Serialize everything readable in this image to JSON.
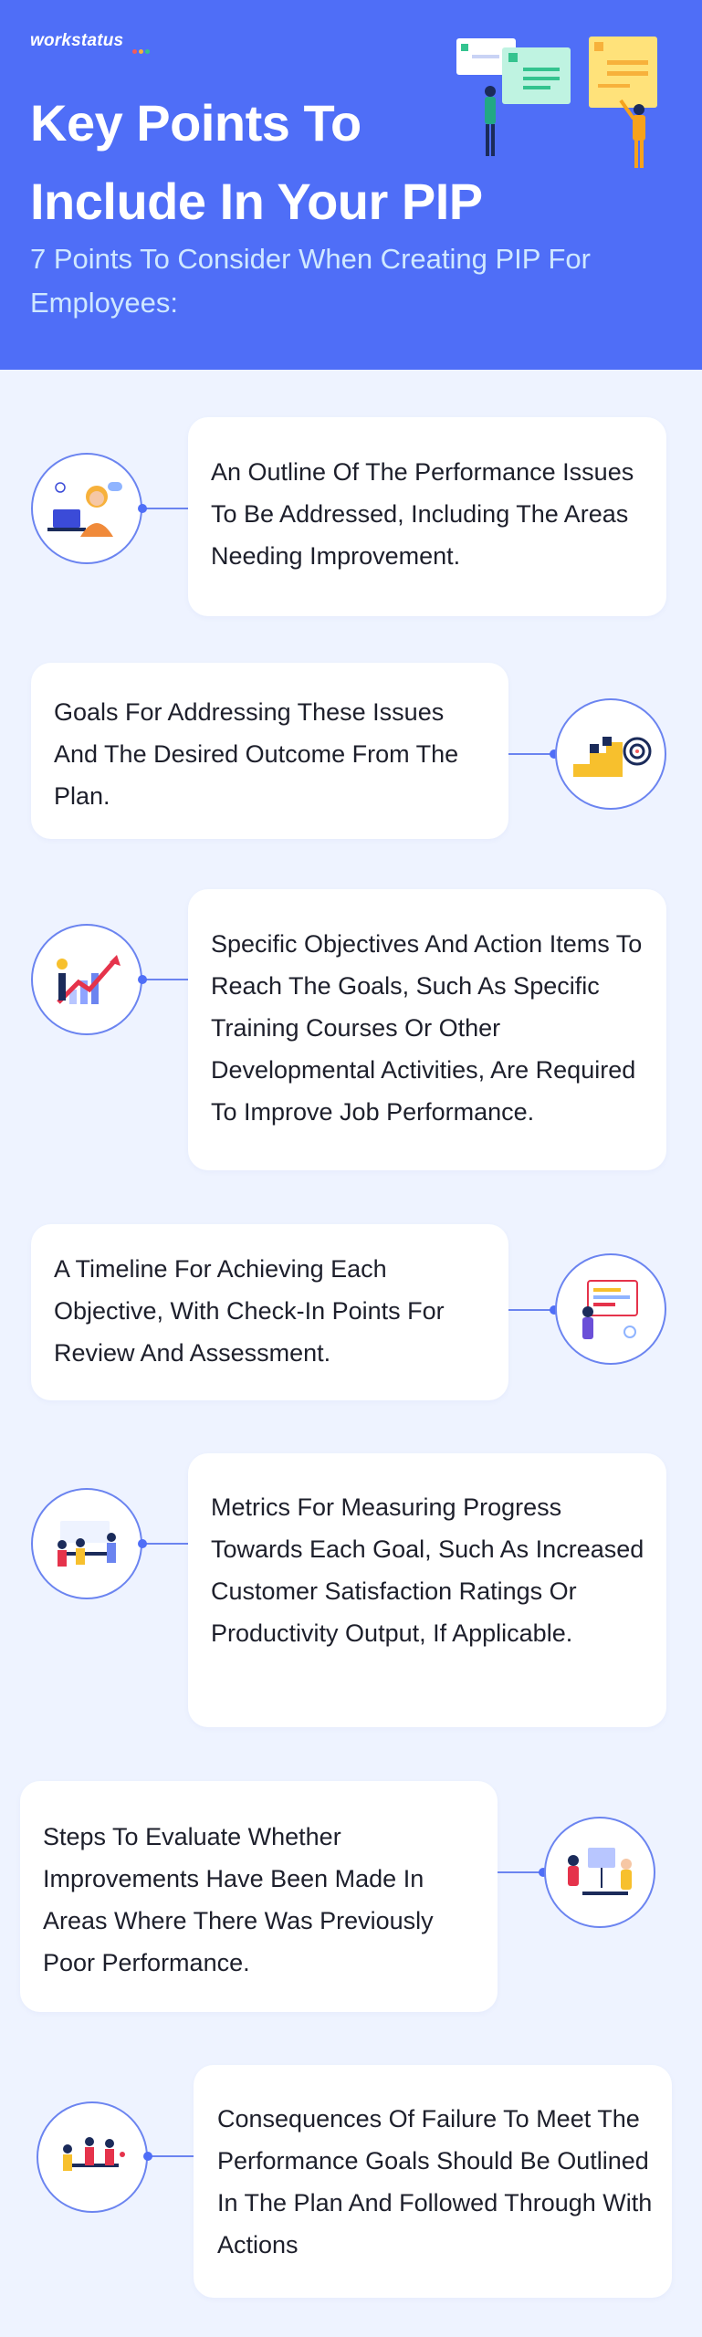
{
  "brand": {
    "logo_text": "workstatus",
    "dot_colors": [
      "#f25b5b",
      "#f7b13b",
      "#34c38f",
      "#8fb4ff"
    ]
  },
  "header": {
    "title": "Key Points To Include In Your PIP",
    "subtitle": "7 Points To Consider When Creating PIP For Employees:",
    "background_color": "#4f6ef7"
  },
  "points": [
    {
      "text": "An Outline Of The Performance Issues To Be Addressed, Including The Areas Needing Improvement.",
      "icon": "customer-support-agent-icon"
    },
    {
      "text": "Goals For Addressing These Issues And The Desired Outcome From The Plan.",
      "icon": "stairs-to-target-icon"
    },
    {
      "text": "Specific Objectives And Action Items To Reach The Goals, Such As Specific Training Courses Or Other Developmental Activities, Are Required To Improve Job Performance.",
      "icon": "growth-chart-icon"
    },
    {
      "text": "A Timeline For Achieving Each Objective, With Check-In Points For Review And Assessment.",
      "icon": "timeline-board-icon"
    },
    {
      "text": "Metrics For Measuring Progress Towards Each Goal, Such As Increased Customer Satisfaction Ratings Or Productivity Output, If Applicable.",
      "icon": "team-meeting-icon"
    },
    {
      "text": "Steps To Evaluate Whether Improvements Have Been Made In Areas Where There Was Previously Poor Performance.",
      "icon": "evaluation-presentation-icon"
    },
    {
      "text": "Consequences Of Failure To Meet The Performance Goals Should Be Outlined In The Plan And Followed Through With Actions",
      "icon": "team-discussion-icon"
    }
  ]
}
